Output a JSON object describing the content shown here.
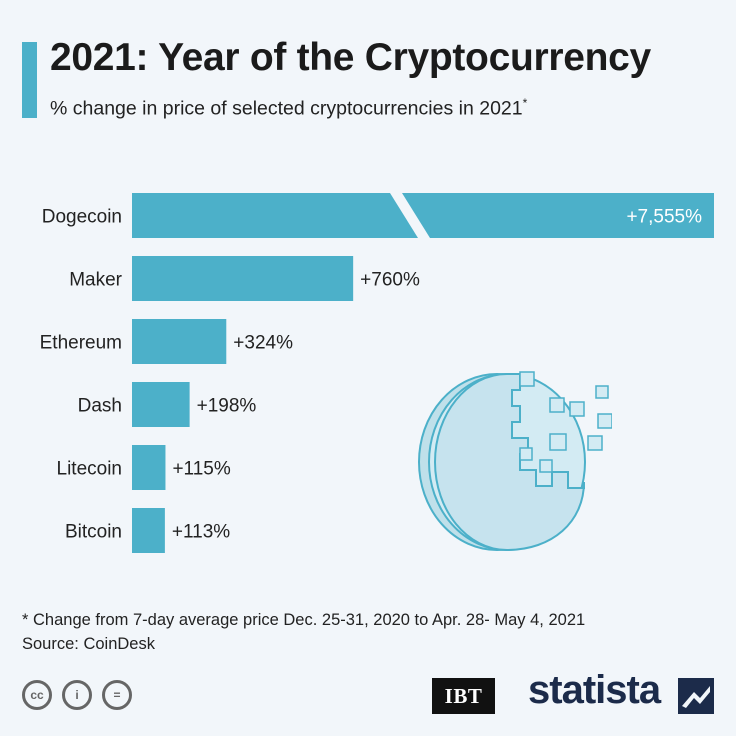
{
  "header": {
    "title": "2021: Year of the Cryptocurrency",
    "subtitle": "% change in price of selected cryptocurrencies in 2021",
    "subtitle_marker": "*"
  },
  "chart_data": {
    "type": "bar",
    "orientation": "horizontal",
    "categories": [
      "Dogecoin",
      "Maker",
      "Ethereum",
      "Dash",
      "Litecoin",
      "Bitcoin"
    ],
    "values": [
      7555,
      760,
      324,
      198,
      115,
      113
    ],
    "value_labels": [
      "+7,555%",
      "+760%",
      "+324%",
      "+198%",
      "+115%",
      "+113%"
    ],
    "broken_axis_bar": "Dogecoin",
    "title": "2021: Year of the Cryptocurrency",
    "xlabel": "",
    "ylabel": "",
    "grid": false,
    "bar_color": "#4cb0c9"
  },
  "footer": {
    "note": "* Change from 7-day average price Dec. 25-31, 2020 to Apr. 28- May 4, 2021",
    "source": "Source: CoinDesk",
    "license_icons": [
      {
        "name": "cc-icon",
        "glyph": "cc"
      },
      {
        "name": "by-icon",
        "glyph": "i"
      },
      {
        "name": "nd-icon",
        "glyph": "="
      }
    ],
    "publisher": "IBT",
    "brand": "statista"
  },
  "colors": {
    "accent": "#4cb0c9",
    "background": "#f2f6fa",
    "coin_fill": "#c9e6f0",
    "coin_stroke": "#4cb0c9"
  }
}
